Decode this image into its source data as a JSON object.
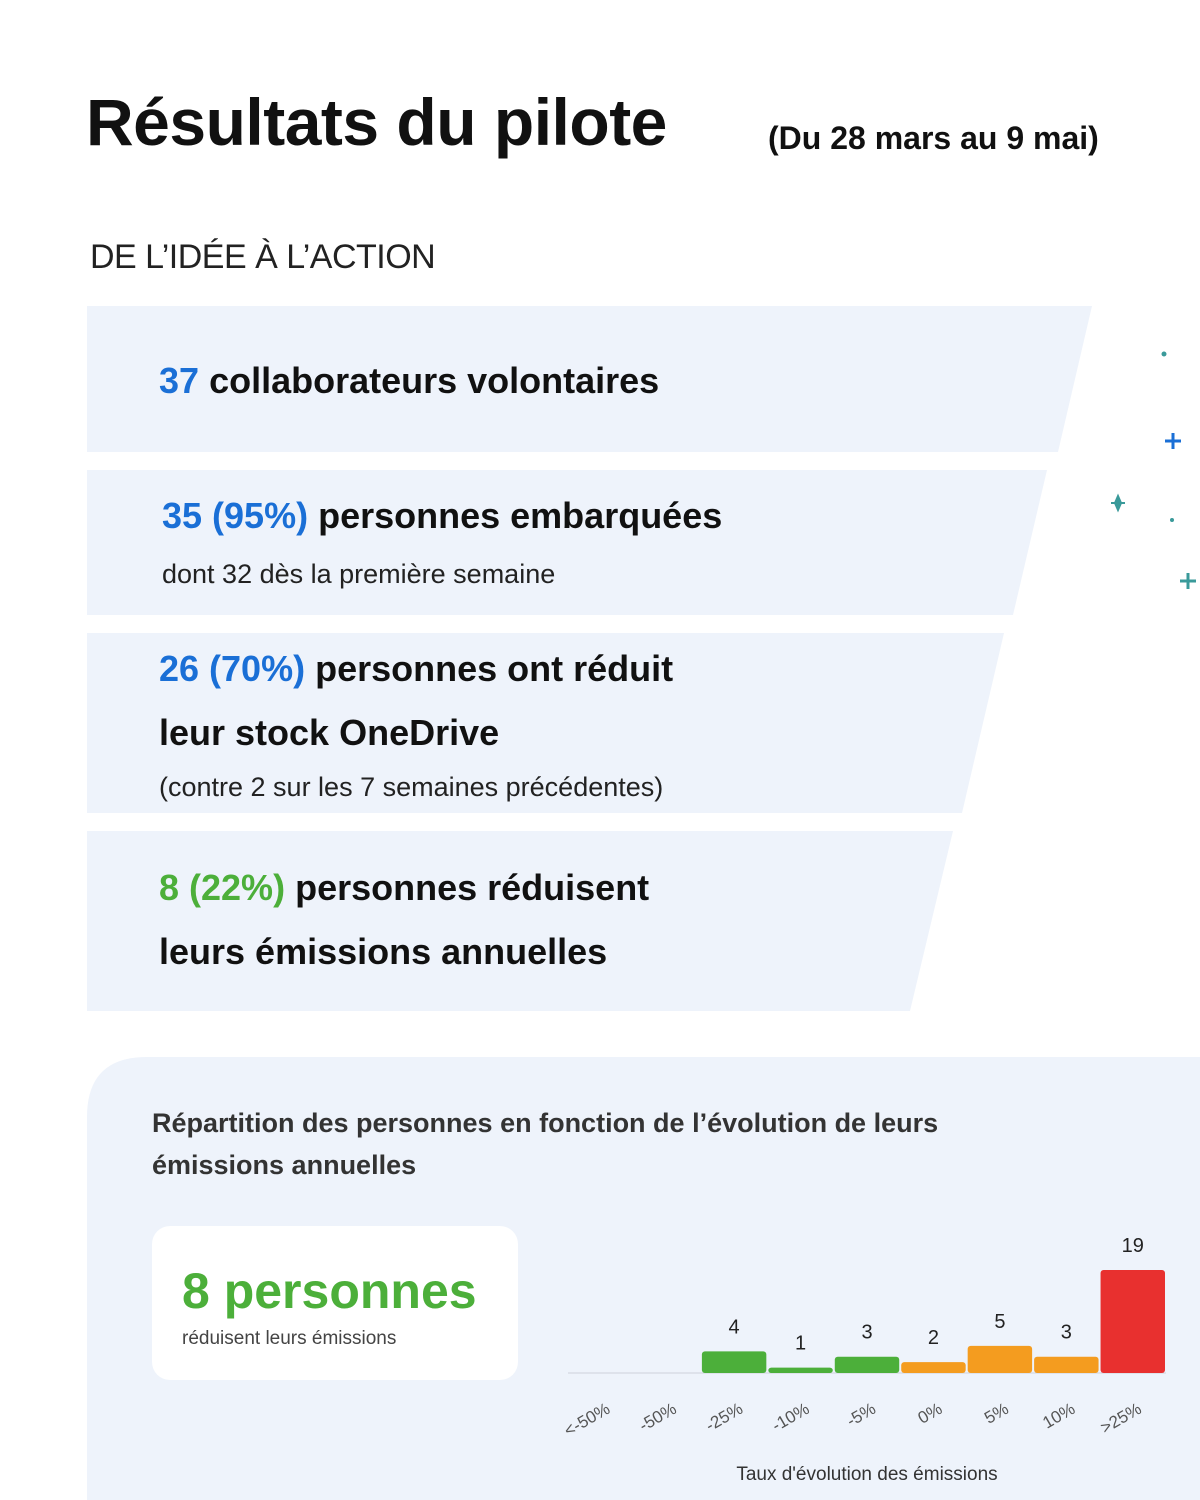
{
  "header": {
    "title": "Résultats du pilote",
    "subtitle": "(Du 28 mars au 9 mai)"
  },
  "section_label": "DE L’IDÉE À L’ACTION",
  "cards": [
    {
      "figure": "37",
      "text": [
        "collaborateurs volontaires"
      ]
    },
    {
      "figure": "35 (95%)",
      "text": [
        "personnes embarquées"
      ],
      "note": "dont 32 dès la première semaine"
    },
    {
      "figure": "26 (70%)",
      "text": [
        "personnes ont réduit",
        "leur stock OneDrive"
      ],
      "note": "(contre 2 sur les 7 semaines précédentes)"
    },
    {
      "figure": "8 (22%)",
      "text": [
        "personnes réduisent",
        "leurs émissions annuelles"
      ]
    }
  ],
  "panel": {
    "title": [
      "Répartition des personnes en fonction de l’évolution de leurs",
      "émissions annuelles"
    ],
    "highlight": {
      "figure": "8 personnes",
      "caption": "réduisent leurs émissions"
    }
  },
  "chart_data": {
    "type": "bar",
    "x_label": "Taux d'évolution des émissions",
    "categories": [
      "<-50%",
      "-50%",
      "-25%",
      "-10%",
      "-5%",
      "0%",
      "5%",
      "10%",
      ">25%"
    ],
    "values": [
      null,
      null,
      4,
      1,
      3,
      2,
      5,
      3,
      19
    ],
    "colors": [
      null,
      null,
      "#4caf3a",
      "#4caf3a",
      "#4caf3a",
      "#f49c1f",
      "#f49c1f",
      "#f49c1f",
      "#e8302f"
    ]
  }
}
